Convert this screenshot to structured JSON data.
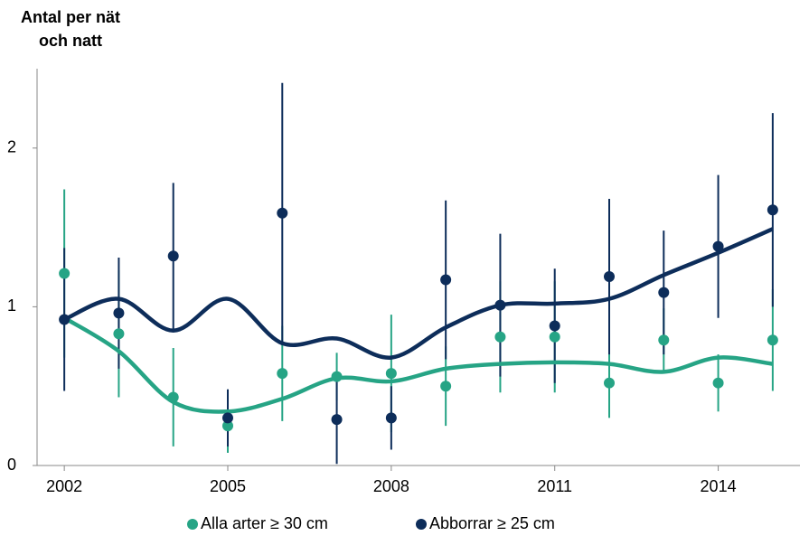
{
  "chart_data": {
    "type": "scatter",
    "ylabel": [
      "Antal per nät",
      "och natt"
    ],
    "xlim": [
      2001.5,
      2015.5
    ],
    "xticks": [
      2002,
      2005,
      2008,
      2011,
      2014
    ],
    "ylim": [
      0,
      2.5
    ],
    "yticks": [
      0,
      1,
      2
    ],
    "x": [
      2002,
      2003,
      2004,
      2005,
      2006,
      2007,
      2008,
      2009,
      2010,
      2011,
      2012,
      2013,
      2014,
      2015
    ],
    "series": [
      {
        "name": "Alla arter ≥ 30 cm",
        "color": "#26a485",
        "values": [
          1.21,
          0.83,
          0.43,
          0.25,
          0.58,
          0.56,
          0.58,
          0.5,
          0.81,
          0.81,
          0.52,
          0.79,
          0.52,
          0.79
        ],
        "errors": [
          0.53,
          0.4,
          0.31,
          0.17,
          0.3,
          0.15,
          0.37,
          0.25,
          0.35,
          0.35,
          0.22,
          0.2,
          0.18,
          0.32
        ],
        "trend": [
          0.93,
          0.72,
          0.4,
          0.34,
          0.42,
          0.55,
          0.53,
          0.61,
          0.64,
          0.65,
          0.64,
          0.59,
          0.68,
          0.64
        ]
      },
      {
        "name": "Abborrar ≥ 25 cm",
        "color": "#0d2d5a",
        "values": [
          0.92,
          0.96,
          1.32,
          0.3,
          1.59,
          0.29,
          0.3,
          1.17,
          1.01,
          0.88,
          1.19,
          1.09,
          1.38,
          1.61
        ],
        "errors": [
          0.45,
          0.35,
          0.46,
          0.18,
          0.82,
          0.28,
          0.2,
          0.5,
          0.45,
          0.36,
          0.49,
          0.39,
          0.45,
          0.61
        ],
        "trend": [
          0.92,
          1.05,
          0.85,
          1.05,
          0.77,
          0.8,
          0.68,
          0.87,
          1.01,
          1.02,
          1.05,
          1.2,
          1.34,
          1.49
        ]
      }
    ]
  }
}
